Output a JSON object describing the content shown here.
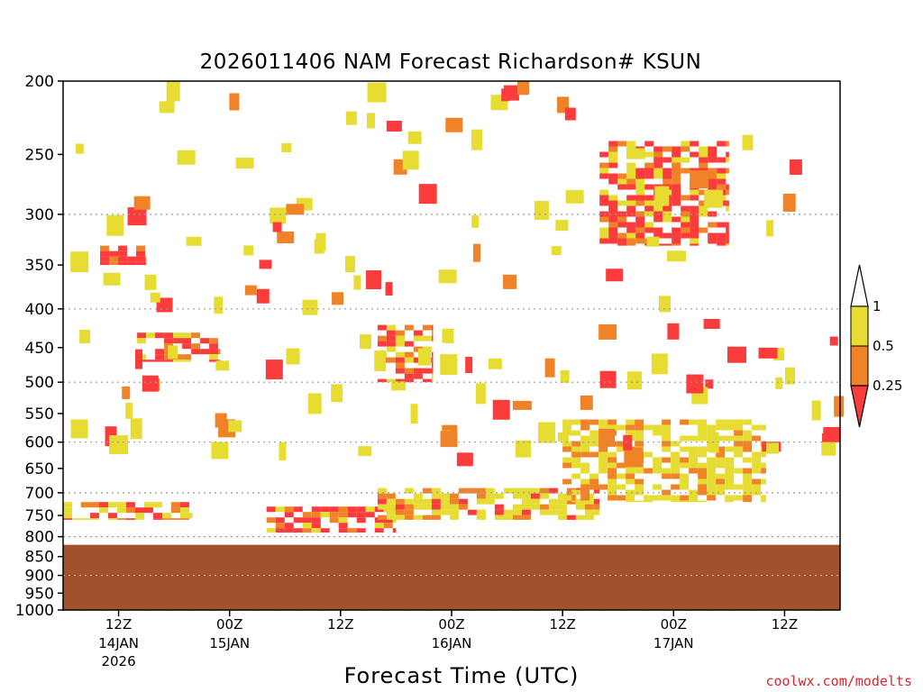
{
  "chart_data": {
    "type": "heatmap",
    "title": "2026011406 NAM Forecast Richardson# KSUN",
    "xlabel": "Forecast Time (UTC)",
    "ylabel": "",
    "y_axis": {
      "scale": "log",
      "inverted": true,
      "range": [
        200,
        1000
      ],
      "ticks": [
        "200",
        "250",
        "300",
        "350",
        "400",
        "450",
        "500",
        "550",
        "600",
        "650",
        "700",
        "750",
        "800",
        "850",
        "900",
        "950",
        "1000"
      ]
    },
    "x_axis": {
      "range_hours": [
        0,
        84
      ],
      "ticks": [
        {
          "hour": 6,
          "label": "12Z",
          "date": "14JAN",
          "year": "2026"
        },
        {
          "hour": 18,
          "label": "00Z",
          "date": "15JAN",
          "year": ""
        },
        {
          "hour": 30,
          "label": "12Z",
          "date": "",
          "year": ""
        },
        {
          "hour": 42,
          "label": "00Z",
          "date": "16JAN",
          "year": ""
        },
        {
          "hour": 54,
          "label": "12Z",
          "date": "",
          "year": ""
        },
        {
          "hour": 66,
          "label": "00Z",
          "date": "17JAN",
          "year": ""
        },
        {
          "hour": 78,
          "label": "12Z",
          "date": "",
          "year": ""
        }
      ]
    },
    "gridlines_pressure": [
      300,
      400,
      500,
      600,
      700,
      800,
      900,
      1000
    ],
    "ground_pressure": 820,
    "legend": {
      "position": "right",
      "levels": [
        {
          "label": "1",
          "range": ">1",
          "color": "#ffffff"
        },
        {
          "label": "0.5",
          "range": "0.5 – 1",
          "color": "#e6dc32"
        },
        {
          "label": "0.25",
          "range": "0.25 – 0.5",
          "color": "#f08228"
        },
        {
          "label": "",
          "range": "< 0.25",
          "color": "#fa3c3c"
        }
      ]
    },
    "colors": {
      "yellow": "#e6dc32",
      "orange": "#f08228",
      "red": "#fa3c3c",
      "ground": "#a0522d"
    },
    "features": [
      {
        "pressure": [
          720,
          760
        ],
        "hours": [
          0,
          14
        ],
        "category": "red_orange_yellow",
        "note": "low-level band"
      },
      {
        "pressure": [
          330,
          350
        ],
        "hours": [
          4,
          9
        ],
        "category": "red"
      },
      {
        "pressure": [
          430,
          470
        ],
        "hours": [
          8,
          17
        ],
        "category": "red_orange"
      },
      {
        "pressure": [
          730,
          790
        ],
        "hours": [
          22,
          36
        ],
        "category": "red_orange"
      },
      {
        "pressure": [
          690,
          760
        ],
        "hours": [
          34,
          58
        ],
        "category": "red_orange_yellow"
      },
      {
        "pressure": [
          560,
          720
        ],
        "hours": [
          54,
          76
        ],
        "category": "yellow_orange"
      },
      {
        "pressure": [
          240,
          330
        ],
        "hours": [
          58,
          72
        ],
        "category": "red_orange"
      },
      {
        "pressure": [
          420,
          500
        ],
        "hours": [
          34,
          40
        ],
        "category": "red_orange"
      }
    ]
  },
  "credit": "coolwx.com/modelts"
}
